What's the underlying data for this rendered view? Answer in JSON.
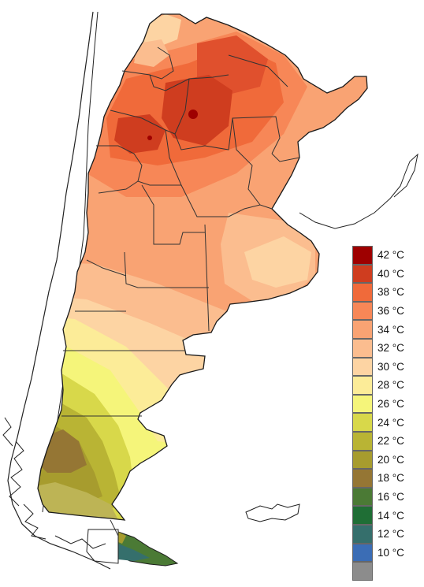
{
  "legend": {
    "items": [
      {
        "label": "42 °C",
        "color": "#9e0000"
      },
      {
        "label": "40 °C",
        "color": "#cf3d1f"
      },
      {
        "label": "38 °C",
        "color": "#f06a3a"
      },
      {
        "label": "36 °C",
        "color": "#f78757"
      },
      {
        "label": "34 °C",
        "color": "#f9a373"
      },
      {
        "label": "32 °C",
        "color": "#fbbd8f"
      },
      {
        "label": "30 °C",
        "color": "#fdd4a3"
      },
      {
        "label": "28 °C",
        "color": "#fcec98"
      },
      {
        "label": "26 °C",
        "color": "#f5f57a"
      },
      {
        "label": "24 °C",
        "color": "#d8d84a"
      },
      {
        "label": "22 °C",
        "color": "#b9b434"
      },
      {
        "label": "20 °C",
        "color": "#a79c2e"
      },
      {
        "label": "18 °C",
        "color": "#957634"
      },
      {
        "label": "16 °C",
        "color": "#4b7a35"
      },
      {
        "label": "14 °C",
        "color": "#1f6e35"
      },
      {
        "label": "12 °C",
        "color": "#356f6c"
      },
      {
        "label": "10 °C",
        "color": "#3b6db5"
      },
      {
        "label": "",
        "color": "#8c8c8c"
      }
    ]
  },
  "map": {
    "colors": {
      "outline": "#1a1a1a",
      "province_border": "#333333",
      "chile_border": "#222222"
    }
  }
}
